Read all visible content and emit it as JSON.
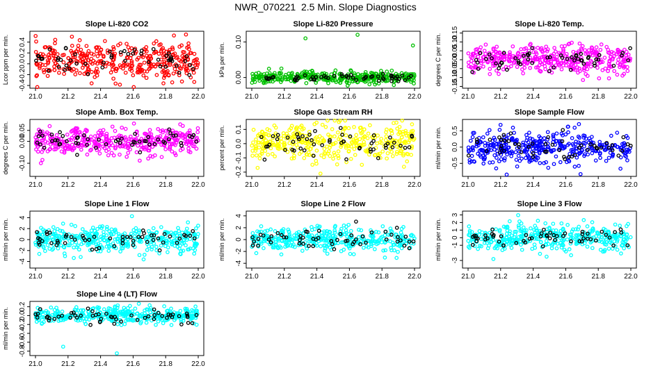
{
  "page_title": "NWR_070221  2.5 Min. Slope Diagnostics",
  "chart_data": [
    {
      "type": "scatter",
      "title": "Slope Li-820 CO2",
      "ylabel": "Lcor ppm per min.",
      "xlim": [
        21.0,
        22.0
      ],
      "ylim": [
        -0.45,
        0.6
      ],
      "xticks": [
        "21.0",
        "21.2",
        "21.4",
        "21.6",
        "21.8",
        "22.0"
      ],
      "yticks": [
        "-0.4",
        "-0.2",
        "0.0",
        "0.2",
        "0.4"
      ],
      "series": [
        {
          "name": "all",
          "color": "#ff0000",
          "center": 0.05,
          "spread": 0.17,
          "n": 380
        },
        {
          "name": "flagged",
          "color": "#000000",
          "center": 0.05,
          "spread": 0.1,
          "n": 55
        }
      ]
    },
    {
      "type": "scatter",
      "title": "Slope Li-820 Pressure",
      "ylabel": "kPa per min.",
      "xlim": [
        21.0,
        22.0
      ],
      "ylim": [
        -0.03,
        0.13
      ],
      "xticks": [
        "21.0",
        "21.2",
        "21.4",
        "21.6",
        "21.8",
        "22.0"
      ],
      "yticks": [
        "0.00",
        "0.10"
      ],
      "series": [
        {
          "name": "all",
          "color": "#00c000",
          "center": 0.0,
          "spread": 0.008,
          "n": 380,
          "outliers": [
            [
              21.33,
              0.11
            ],
            [
              21.65,
              0.12
            ],
            [
              21.99,
              0.09
            ]
          ]
        },
        {
          "name": "flagged",
          "color": "#000000",
          "center": 0.0,
          "spread": 0.006,
          "n": 55
        }
      ]
    },
    {
      "type": "scatter",
      "title": "Slope Li-820 Temp.",
      "ylabel": "degrees C per min.",
      "xlim": [
        21.0,
        22.0
      ],
      "ylim": [
        -0.16,
        0.16
      ],
      "xticks": [
        "21.0",
        "21.2",
        "21.4",
        "21.6",
        "21.8",
        "22.0"
      ],
      "yticks": [
        "-0.15",
        "-0.10",
        "-0.05",
        "0.00",
        "0.05",
        "0.10",
        "0.15"
      ],
      "series": [
        {
          "name": "all",
          "color": "#ff00ff",
          "center": 0.0,
          "spread": 0.04,
          "n": 380
        },
        {
          "name": "flagged",
          "color": "#000000",
          "center": 0.0,
          "spread": 0.03,
          "n": 55
        }
      ]
    },
    {
      "type": "scatter",
      "title": "Slope Amb. Box Temp.",
      "ylabel": "degrees C per min.",
      "xlim": [
        21.0,
        22.0
      ],
      "ylim": [
        -0.16,
        0.1
      ],
      "xticks": [
        "21.0",
        "21.2",
        "21.4",
        "21.6",
        "21.8",
        "22.0"
      ],
      "yticks": [
        "-0.10",
        "0.00",
        "0.05"
      ],
      "series": [
        {
          "name": "all",
          "color": "#ff00ff",
          "center": 0.0,
          "spread": 0.03,
          "n": 380
        },
        {
          "name": "flagged",
          "color": "#000000",
          "center": 0.0,
          "spread": 0.025,
          "n": 55
        }
      ]
    },
    {
      "type": "scatter",
      "title": "Slope Gas Stream RH",
      "ylabel": "percent per min.",
      "xlim": [
        21.0,
        22.0
      ],
      "ylim": [
        -0.23,
        0.17
      ],
      "xticks": [
        "21.0",
        "21.2",
        "21.4",
        "21.6",
        "21.8",
        "22.0"
      ],
      "yticks": [
        "-0.2",
        "-0.1",
        "0.0",
        "0.1"
      ],
      "series": [
        {
          "name": "all",
          "color": "#ffff00",
          "center": 0.0,
          "spread": 0.07,
          "n": 380
        },
        {
          "name": "flagged",
          "color": "#000000",
          "center": 0.0,
          "spread": 0.06,
          "n": 55
        }
      ]
    },
    {
      "type": "scatter",
      "title": "Slope Sample Flow",
      "ylabel": "ml/min per min.",
      "xlim": [
        21.0,
        22.0
      ],
      "ylim": [
        -0.9,
        0.85
      ],
      "xticks": [
        "21.0",
        "21.2",
        "21.4",
        "21.6",
        "21.8",
        "22.0"
      ],
      "yticks": [
        "-0.5",
        "0.0",
        "0.5"
      ],
      "series": [
        {
          "name": "all",
          "color": "#0000ff",
          "center": 0.0,
          "spread": 0.25,
          "n": 380
        },
        {
          "name": "flagged",
          "color": "#000000",
          "center": 0.0,
          "spread": 0.2,
          "n": 55
        }
      ]
    },
    {
      "type": "scatter",
      "title": "Slope Line 1 Flow",
      "ylabel": "ml/min per min.",
      "xlim": [
        21.0,
        22.0
      ],
      "ylim": [
        -5.2,
        5.2
      ],
      "xticks": [
        "21.0",
        "21.2",
        "21.4",
        "21.6",
        "21.8",
        "22.0"
      ],
      "yticks": [
        "-4",
        "-2",
        "0",
        "2",
        "4"
      ],
      "series": [
        {
          "name": "all",
          "color": "#00ffff",
          "center": 0.0,
          "spread": 1.2,
          "n": 380
        },
        {
          "name": "flagged",
          "color": "#000000",
          "center": 0.0,
          "spread": 0.9,
          "n": 55
        }
      ]
    },
    {
      "type": "scatter",
      "title": "Slope Line 2 Flow",
      "ylabel": "ml/min per min.",
      "xlim": [
        21.0,
        22.0
      ],
      "ylim": [
        -4.8,
        4.8
      ],
      "xticks": [
        "21.0",
        "21.2",
        "21.4",
        "21.6",
        "21.8",
        "22.0"
      ],
      "yticks": [
        "-4",
        "-2",
        "0",
        "2",
        "4"
      ],
      "series": [
        {
          "name": "all",
          "color": "#00ffff",
          "center": 0.0,
          "spread": 1.0,
          "n": 380
        },
        {
          "name": "flagged",
          "color": "#000000",
          "center": 0.0,
          "spread": 0.8,
          "n": 55
        }
      ]
    },
    {
      "type": "scatter",
      "title": "Slope Line 3 Flow",
      "ylabel": "ml/min per min.",
      "xlim": [
        21.0,
        22.0
      ],
      "ylim": [
        -4.0,
        3.5
      ],
      "xticks": [
        "21.0",
        "21.2",
        "21.4",
        "21.6",
        "21.8",
        "22.0"
      ],
      "yticks": [
        "-3",
        "-1",
        "0",
        "1",
        "2",
        "3"
      ],
      "series": [
        {
          "name": "all",
          "color": "#00ffff",
          "center": 0.0,
          "spread": 0.9,
          "n": 380
        },
        {
          "name": "flagged",
          "color": "#000000",
          "center": 0.0,
          "spread": 0.7,
          "n": 55
        }
      ]
    },
    {
      "type": "scatter",
      "title": "Slope Line 4 (LT) Flow",
      "ylabel": "ml/min per min.",
      "xlim": [
        21.0,
        22.0
      ],
      "ylim": [
        -0.9,
        0.32
      ],
      "xticks": [
        "21.0",
        "21.2",
        "21.4",
        "21.6",
        "21.8",
        "22.0"
      ],
      "yticks": [
        "-0.8",
        "-0.6",
        "-0.4",
        "-0.2",
        "0.0",
        "0.2"
      ],
      "series": [
        {
          "name": "all",
          "color": "#00ffff",
          "center": 0.0,
          "spread": 0.09,
          "n": 380,
          "outliers": [
            [
              21.17,
              -0.7
            ],
            [
              21.5,
              -0.85
            ]
          ]
        },
        {
          "name": "flagged",
          "color": "#000000",
          "center": -0.02,
          "spread": 0.07,
          "n": 55
        }
      ]
    }
  ]
}
